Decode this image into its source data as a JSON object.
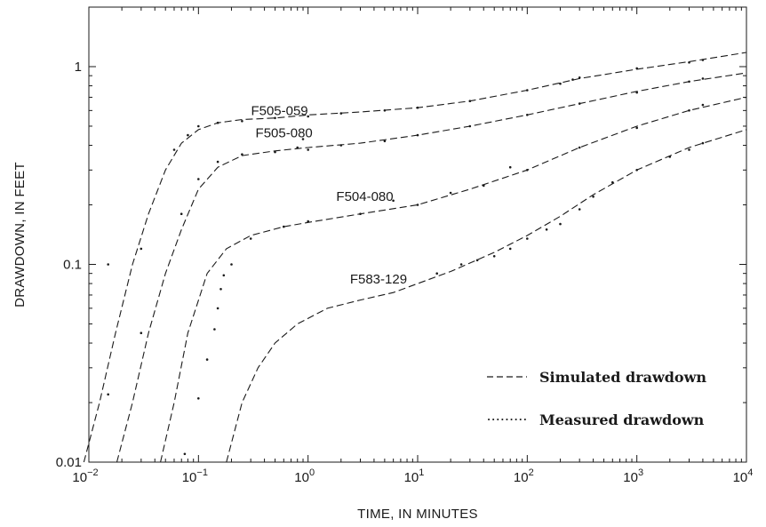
{
  "chart_data": {
    "type": "line",
    "xscale": "log",
    "yscale": "log",
    "xlim": [
      0.01,
      10000
    ],
    "ylim": [
      0.01,
      2
    ],
    "xlabel": "TIME, IN MINUTES",
    "ylabel": "DRAWDOWN, IN FEET",
    "x_ticks": [
      {
        "value": 0.01,
        "base": "10",
        "exp": "−2"
      },
      {
        "value": 0.1,
        "base": "10",
        "exp": "−1"
      },
      {
        "value": 1,
        "base": "10",
        "exp": "0"
      },
      {
        "value": 10,
        "base": "10",
        "exp": "1"
      },
      {
        "value": 100,
        "base": "10",
        "exp": "2"
      },
      {
        "value": 1000,
        "base": "10",
        "exp": "3"
      },
      {
        "value": 10000,
        "base": "10",
        "exp": "4"
      }
    ],
    "y_ticks": [
      {
        "value": 0.01,
        "label": "0.01"
      },
      {
        "value": 0.1,
        "label": "0.1"
      },
      {
        "value": 1,
        "label": "1"
      }
    ],
    "legend": {
      "placement": "bottom-right",
      "entries": [
        {
          "name": "Simulated drawdown",
          "style": "dashed"
        },
        {
          "name": "Measured drawdown",
          "style": "dotted"
        }
      ]
    },
    "series": [
      {
        "name": "F505-059",
        "label_at": [
          1,
          0.57
        ],
        "simulated": [
          [
            0.009,
            0.01
          ],
          [
            0.0125,
            0.02
          ],
          [
            0.0175,
            0.045
          ],
          [
            0.025,
            0.1
          ],
          [
            0.035,
            0.18
          ],
          [
            0.05,
            0.3
          ],
          [
            0.07,
            0.41
          ],
          [
            0.1,
            0.48
          ],
          [
            0.15,
            0.52
          ],
          [
            0.25,
            0.54
          ],
          [
            0.5,
            0.55
          ],
          [
            1,
            0.57
          ],
          [
            3,
            0.59
          ],
          [
            10,
            0.62
          ],
          [
            30,
            0.67
          ],
          [
            100,
            0.76
          ],
          [
            300,
            0.87
          ],
          [
            1000,
            0.97
          ],
          [
            3000,
            1.06
          ],
          [
            10000,
            1.18
          ]
        ],
        "measured": [
          [
            0.015,
            0.1
          ],
          [
            0.03,
            0.12
          ],
          [
            0.06,
            0.38
          ],
          [
            0.08,
            0.45
          ],
          [
            0.1,
            0.5
          ],
          [
            0.15,
            0.52
          ],
          [
            0.25,
            0.53
          ],
          [
            0.5,
            0.55
          ],
          [
            1,
            0.56
          ],
          [
            2,
            0.58
          ],
          [
            5,
            0.6
          ],
          [
            10,
            0.62
          ],
          [
            30,
            0.67
          ],
          [
            100,
            0.76
          ],
          [
            200,
            0.82
          ],
          [
            260,
            0.86
          ],
          [
            300,
            0.88
          ],
          [
            1000,
            0.98
          ],
          [
            3000,
            1.05
          ],
          [
            4000,
            1.08
          ]
        ]
      },
      {
        "name": "F505-080",
        "label_at": [
          1.1,
          0.44
        ],
        "simulated": [
          [
            0.018,
            0.01
          ],
          [
            0.025,
            0.02
          ],
          [
            0.035,
            0.045
          ],
          [
            0.05,
            0.09
          ],
          [
            0.07,
            0.15
          ],
          [
            0.1,
            0.24
          ],
          [
            0.15,
            0.31
          ],
          [
            0.25,
            0.355
          ],
          [
            0.5,
            0.375
          ],
          [
            1,
            0.39
          ],
          [
            3,
            0.41
          ],
          [
            10,
            0.45
          ],
          [
            30,
            0.5
          ],
          [
            100,
            0.57
          ],
          [
            300,
            0.65
          ],
          [
            1000,
            0.75
          ],
          [
            3000,
            0.84
          ],
          [
            10000,
            0.93
          ]
        ],
        "measured": [
          [
            0.015,
            0.022
          ],
          [
            0.03,
            0.045
          ],
          [
            0.07,
            0.18
          ],
          [
            0.1,
            0.27
          ],
          [
            0.15,
            0.33
          ],
          [
            0.25,
            0.36
          ],
          [
            0.5,
            0.37
          ],
          [
            0.8,
            0.39
          ],
          [
            0.9,
            0.43
          ],
          [
            1,
            0.38
          ],
          [
            2,
            0.4
          ],
          [
            5,
            0.42
          ],
          [
            10,
            0.45
          ],
          [
            30,
            0.5
          ],
          [
            100,
            0.57
          ],
          [
            300,
            0.65
          ],
          [
            1000,
            0.74
          ],
          [
            3000,
            0.84
          ],
          [
            4000,
            0.87
          ]
        ]
      },
      {
        "name": "F504-080",
        "label_at": [
          6,
          0.21
        ],
        "simulated": [
          [
            0.045,
            0.01
          ],
          [
            0.06,
            0.02
          ],
          [
            0.08,
            0.045
          ],
          [
            0.12,
            0.09
          ],
          [
            0.18,
            0.12
          ],
          [
            0.3,
            0.14
          ],
          [
            0.6,
            0.155
          ],
          [
            1,
            0.163
          ],
          [
            3,
            0.18
          ],
          [
            10,
            0.2
          ],
          [
            30,
            0.24
          ],
          [
            100,
            0.3
          ],
          [
            300,
            0.39
          ],
          [
            1000,
            0.5
          ],
          [
            3000,
            0.6
          ],
          [
            10000,
            0.7
          ]
        ],
        "measured": [
          [
            0.075,
            0.011
          ],
          [
            0.1,
            0.021
          ],
          [
            0.12,
            0.033
          ],
          [
            0.14,
            0.047
          ],
          [
            0.15,
            0.06
          ],
          [
            0.16,
            0.075
          ],
          [
            0.17,
            0.088
          ],
          [
            0.2,
            0.1
          ],
          [
            0.3,
            0.135
          ],
          [
            0.6,
            0.155
          ],
          [
            1,
            0.165
          ],
          [
            3,
            0.18
          ],
          [
            6,
            0.21
          ],
          [
            10,
            0.2
          ],
          [
            20,
            0.23
          ],
          [
            40,
            0.25
          ],
          [
            70,
            0.31
          ],
          [
            100,
            0.3
          ],
          [
            300,
            0.39
          ],
          [
            1000,
            0.49
          ],
          [
            3000,
            0.6
          ],
          [
            4000,
            0.64
          ]
        ]
      },
      {
        "name": "F583-129",
        "label_at": [
          8,
          0.08
        ],
        "simulated": [
          [
            0.18,
            0.01
          ],
          [
            0.25,
            0.02
          ],
          [
            0.35,
            0.03
          ],
          [
            0.5,
            0.04
          ],
          [
            0.8,
            0.05
          ],
          [
            1.5,
            0.06
          ],
          [
            3,
            0.066
          ],
          [
            6,
            0.072
          ],
          [
            10,
            0.08
          ],
          [
            20,
            0.092
          ],
          [
            50,
            0.115
          ],
          [
            100,
            0.14
          ],
          [
            200,
            0.175
          ],
          [
            400,
            0.225
          ],
          [
            1000,
            0.3
          ],
          [
            3000,
            0.39
          ],
          [
            10000,
            0.48
          ]
        ],
        "measured": [
          [
            15,
            0.09
          ],
          [
            25,
            0.1
          ],
          [
            35,
            0.105
          ],
          [
            50,
            0.11
          ],
          [
            70,
            0.12
          ],
          [
            100,
            0.135
          ],
          [
            150,
            0.15
          ],
          [
            200,
            0.16
          ],
          [
            300,
            0.19
          ],
          [
            400,
            0.22
          ],
          [
            600,
            0.26
          ],
          [
            1000,
            0.3
          ],
          [
            2000,
            0.35
          ],
          [
            3000,
            0.38
          ],
          [
            4000,
            0.41
          ]
        ]
      }
    ]
  }
}
